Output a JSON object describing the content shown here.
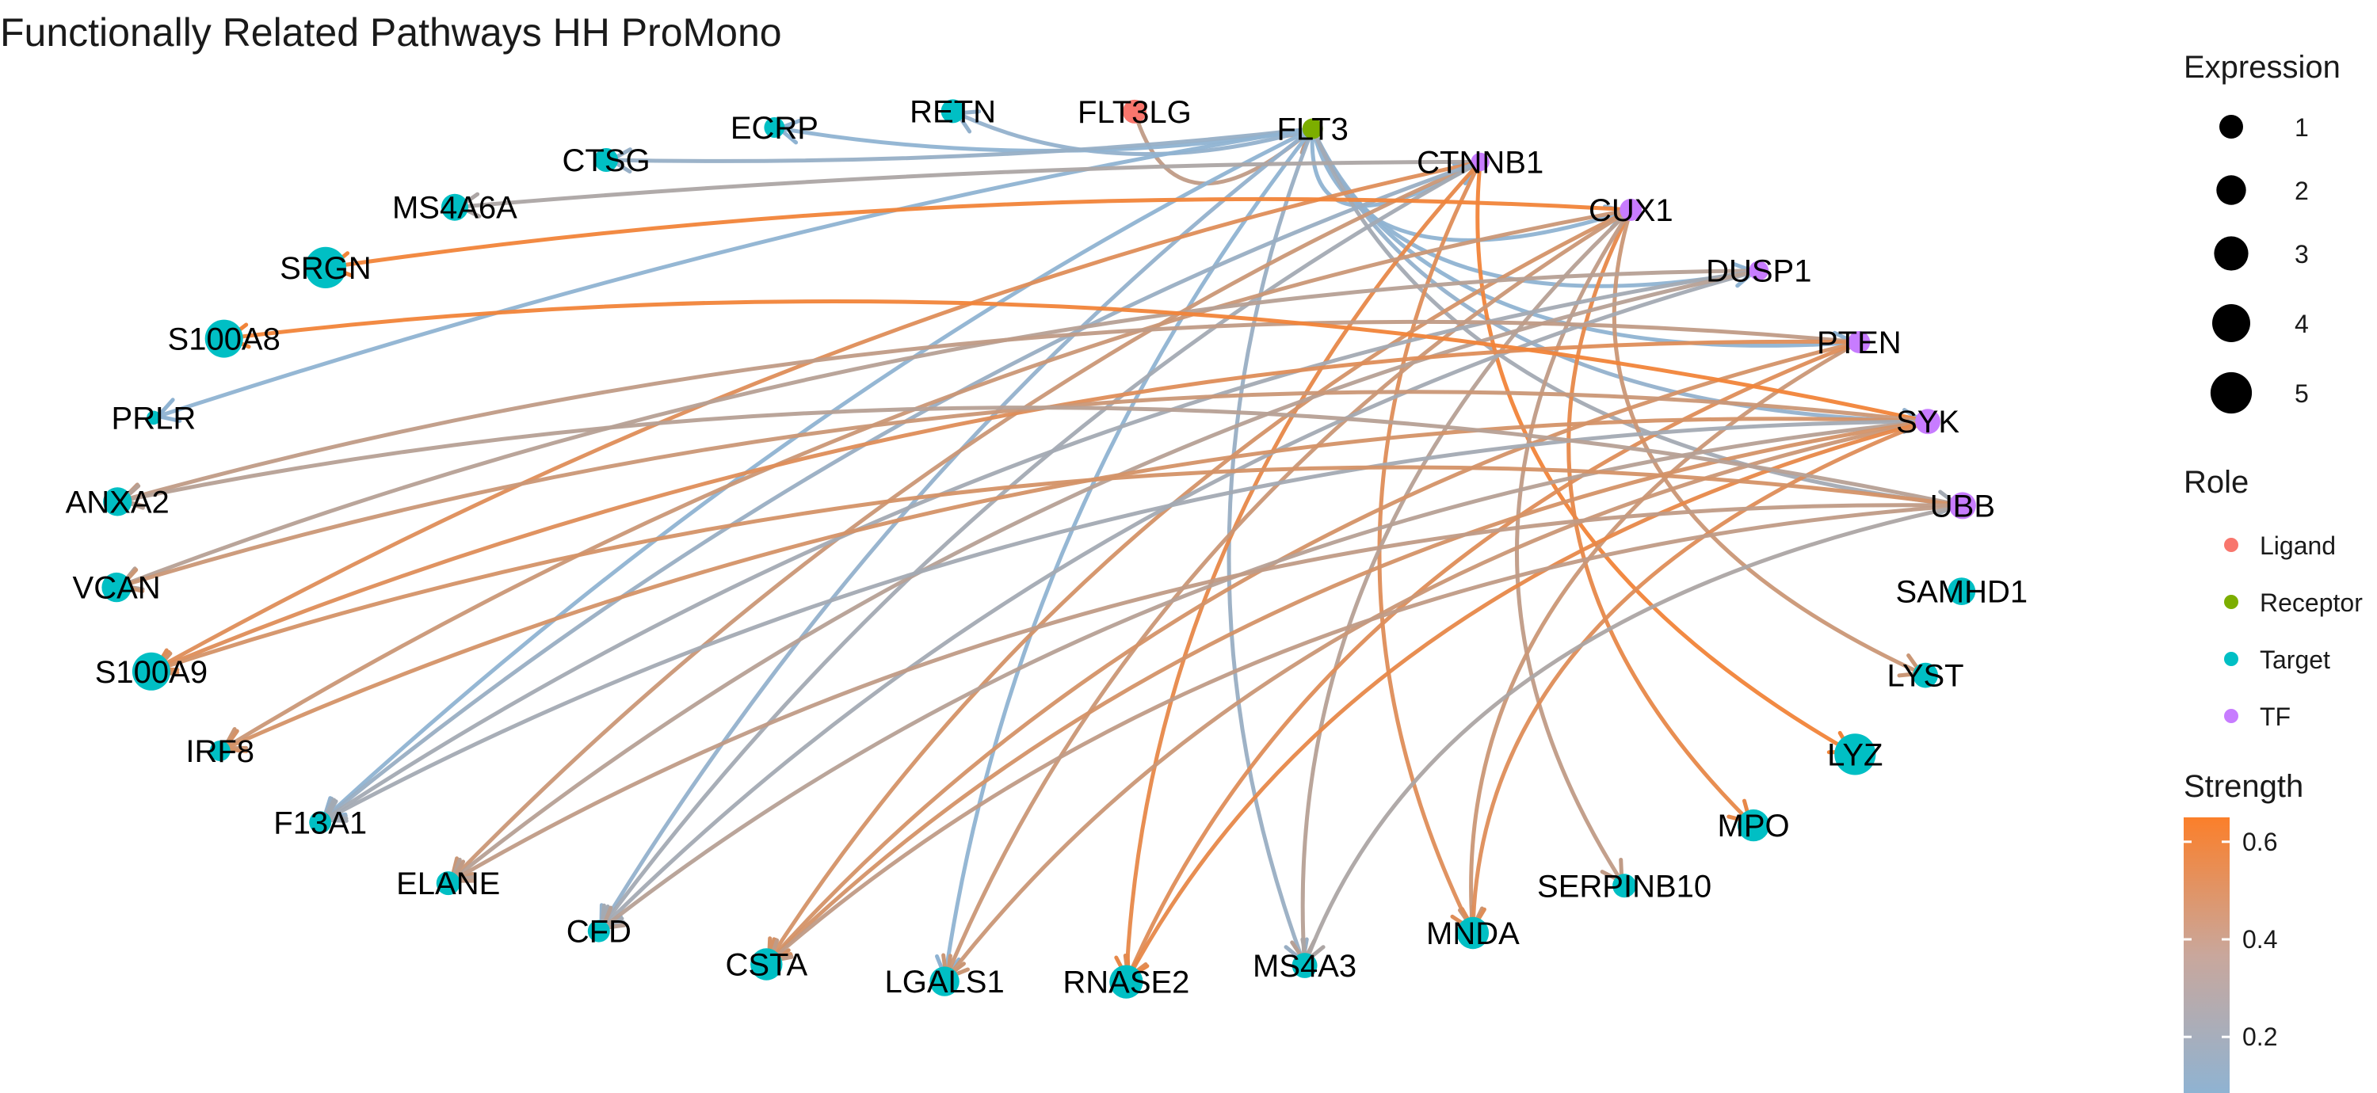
{
  "title": "Functionally Related Pathways HH ProMono",
  "colors": {
    "Ligand": "#F8766D",
    "Receptor": "#7CAE00",
    "Target": "#00BFC4",
    "TF": "#C77CFF",
    "strength_low": "#8FB3D2",
    "strength_high": "#FB7F2A"
  },
  "nodes": [
    {
      "id": "ECRP",
      "role": "Target",
      "expr": 0.6
    },
    {
      "id": "RETN",
      "role": "Target",
      "expr": 1.0
    },
    {
      "id": "FLT3LG",
      "role": "Ligand",
      "expr": 1.0
    },
    {
      "id": "FLT3",
      "role": "Receptor",
      "expr": 0.6
    },
    {
      "id": "CTNNB1",
      "role": "TF",
      "expr": 0.4
    },
    {
      "id": "CUX1",
      "role": "TF",
      "expr": 0.8
    },
    {
      "id": "DUSP1",
      "role": "TF",
      "expr": 0.5
    },
    {
      "id": "PTEN",
      "role": "TF",
      "expr": 0.8
    },
    {
      "id": "SYK",
      "role": "TF",
      "expr": 1.2
    },
    {
      "id": "UBB",
      "role": "TF",
      "expr": 1.5
    },
    {
      "id": "SAMHD1",
      "role": "Target",
      "expr": 1.6
    },
    {
      "id": "LYST",
      "role": "Target",
      "expr": 1.2
    },
    {
      "id": "LYZ",
      "role": "Target",
      "expr": 5.0
    },
    {
      "id": "MPO",
      "role": "Target",
      "expr": 2.5
    },
    {
      "id": "SERPINB10",
      "role": "Target",
      "expr": 1.0
    },
    {
      "id": "MNDA",
      "role": "Target",
      "expr": 2.5
    },
    {
      "id": "MS4A3",
      "role": "Target",
      "expr": 1.2
    },
    {
      "id": "RNASE2",
      "role": "Target",
      "expr": 2.8
    },
    {
      "id": "LGALS1",
      "role": "Target",
      "expr": 2.0
    },
    {
      "id": "CSTA",
      "role": "Target",
      "expr": 2.5
    },
    {
      "id": "CFD",
      "role": "Target",
      "expr": 0.8
    },
    {
      "id": "ELANE",
      "role": "Target",
      "expr": 1.0
    },
    {
      "id": "F13A1",
      "role": "Target",
      "expr": 0.8
    },
    {
      "id": "IRF8",
      "role": "Target",
      "expr": 0.6
    },
    {
      "id": "S100A9",
      "role": "Target",
      "expr": 4.0
    },
    {
      "id": "VCAN",
      "role": "Target",
      "expr": 2.0
    },
    {
      "id": "ANXA2",
      "role": "Target",
      "expr": 1.8
    },
    {
      "id": "PRLR",
      "role": "Target",
      "expr": 0.1
    },
    {
      "id": "S100A8",
      "role": "Target",
      "expr": 4.0
    },
    {
      "id": "SRGN",
      "role": "Target",
      "expr": 5.0
    },
    {
      "id": "MS4A6A",
      "role": "Target",
      "expr": 1.5
    },
    {
      "id": "CTSG",
      "role": "Target",
      "expr": 1.0
    }
  ],
  "edges": [
    {
      "from": "FLT3LG",
      "to": "FLT3",
      "strength": 0.35
    },
    {
      "from": "FLT3",
      "to": "RETN",
      "strength": 0.12
    },
    {
      "from": "FLT3",
      "to": "ECRP",
      "strength": 0.1
    },
    {
      "from": "FLT3",
      "to": "CTSG",
      "strength": 0.14
    },
    {
      "from": "FLT3",
      "to": "PRLR",
      "strength": 0.05
    },
    {
      "from": "FLT3",
      "to": "F13A1",
      "strength": 0.1
    },
    {
      "from": "FLT3",
      "to": "CFD",
      "strength": 0.12
    },
    {
      "from": "FLT3",
      "to": "MS4A3",
      "strength": 0.15
    },
    {
      "from": "FLT3",
      "to": "LGALS1",
      "strength": 0.1
    },
    {
      "from": "FLT3",
      "to": "CTNNB1",
      "strength": 0.1
    },
    {
      "from": "FLT3",
      "to": "CUX1",
      "strength": 0.1
    },
    {
      "from": "FLT3",
      "to": "DUSP1",
      "strength": 0.05
    },
    {
      "from": "FLT3",
      "to": "PTEN",
      "strength": 0.1
    },
    {
      "from": "FLT3",
      "to": "SYK",
      "strength": 0.12
    },
    {
      "from": "FLT3",
      "to": "UBB",
      "strength": 0.2
    },
    {
      "from": "CTNNB1",
      "to": "MS4A6A",
      "strength": 0.25
    },
    {
      "from": "CTNNB1",
      "to": "S100A9",
      "strength": 0.5
    },
    {
      "from": "CTNNB1",
      "to": "ELANE",
      "strength": 0.4
    },
    {
      "from": "CTNNB1",
      "to": "CFD",
      "strength": 0.2
    },
    {
      "from": "CTNNB1",
      "to": "LYZ",
      "strength": 0.6
    },
    {
      "from": "CTNNB1",
      "to": "MNDA",
      "strength": 0.5
    },
    {
      "from": "CTNNB1",
      "to": "RNASE2",
      "strength": 0.55
    },
    {
      "from": "CTNNB1",
      "to": "F13A1",
      "strength": 0.15
    },
    {
      "from": "CUX1",
      "to": "SRGN",
      "strength": 0.6
    },
    {
      "from": "CUX1",
      "to": "IRF8",
      "strength": 0.4
    },
    {
      "from": "CUX1",
      "to": "CSTA",
      "strength": 0.45
    },
    {
      "from": "CUX1",
      "to": "LGALS1",
      "strength": 0.4
    },
    {
      "from": "CUX1",
      "to": "MS4A3",
      "strength": 0.3
    },
    {
      "from": "CUX1",
      "to": "MPO",
      "strength": 0.55
    },
    {
      "from": "CUX1",
      "to": "SERPINB10",
      "strength": 0.35
    },
    {
      "from": "CUX1",
      "to": "LYST",
      "strength": 0.4
    },
    {
      "from": "DUSP1",
      "to": "VCAN",
      "strength": 0.3
    },
    {
      "from": "DUSP1",
      "to": "F13A1",
      "strength": 0.2
    },
    {
      "from": "DUSP1",
      "to": "CFD",
      "strength": 0.2
    },
    {
      "from": "DUSP1",
      "to": "ELANE",
      "strength": 0.3
    },
    {
      "from": "PTEN",
      "to": "ANXA2",
      "strength": 0.35
    },
    {
      "from": "PTEN",
      "to": "S100A9",
      "strength": 0.5
    },
    {
      "from": "PTEN",
      "to": "CSTA",
      "strength": 0.45
    },
    {
      "from": "PTEN",
      "to": "MNDA",
      "strength": 0.4
    },
    {
      "from": "PTEN",
      "to": "RNASE2",
      "strength": 0.5
    },
    {
      "from": "SYK",
      "to": "S100A8",
      "strength": 0.6
    },
    {
      "from": "SYK",
      "to": "VCAN",
      "strength": 0.4
    },
    {
      "from": "SYK",
      "to": "IRF8",
      "strength": 0.45
    },
    {
      "from": "SYK",
      "to": "F13A1",
      "strength": 0.2
    },
    {
      "from": "SYK",
      "to": "CFD",
      "strength": 0.3
    },
    {
      "from": "SYK",
      "to": "CSTA",
      "strength": 0.45
    },
    {
      "from": "SYK",
      "to": "LGALS1",
      "strength": 0.4
    },
    {
      "from": "SYK",
      "to": "RNASE2",
      "strength": 0.55
    },
    {
      "from": "SYK",
      "to": "MNDA",
      "strength": 0.5
    },
    {
      "from": "UBB",
      "to": "ANXA2",
      "strength": 0.3
    },
    {
      "from": "UBB",
      "to": "S100A9",
      "strength": 0.45
    },
    {
      "from": "UBB",
      "to": "CSTA",
      "strength": 0.35
    },
    {
      "from": "UBB",
      "to": "MS4A3",
      "strength": 0.25
    },
    {
      "from": "UBB",
      "to": "ELANE",
      "strength": 0.35
    }
  ],
  "legend": {
    "expression": {
      "title": "Expression",
      "values": [
        1,
        2,
        3,
        4,
        5
      ]
    },
    "role": {
      "title": "Role",
      "items": [
        {
          "label": "Ligand",
          "color": "#F8766D"
        },
        {
          "label": "Receptor",
          "color": "#7CAE00"
        },
        {
          "label": "Target",
          "color": "#00BFC4"
        },
        {
          "label": "TF",
          "color": "#C77CFF"
        }
      ]
    },
    "strength": {
      "title": "Strength",
      "ticks": [
        0.2,
        0.4,
        0.6
      ],
      "range": [
        0.1,
        0.65
      ]
    }
  }
}
